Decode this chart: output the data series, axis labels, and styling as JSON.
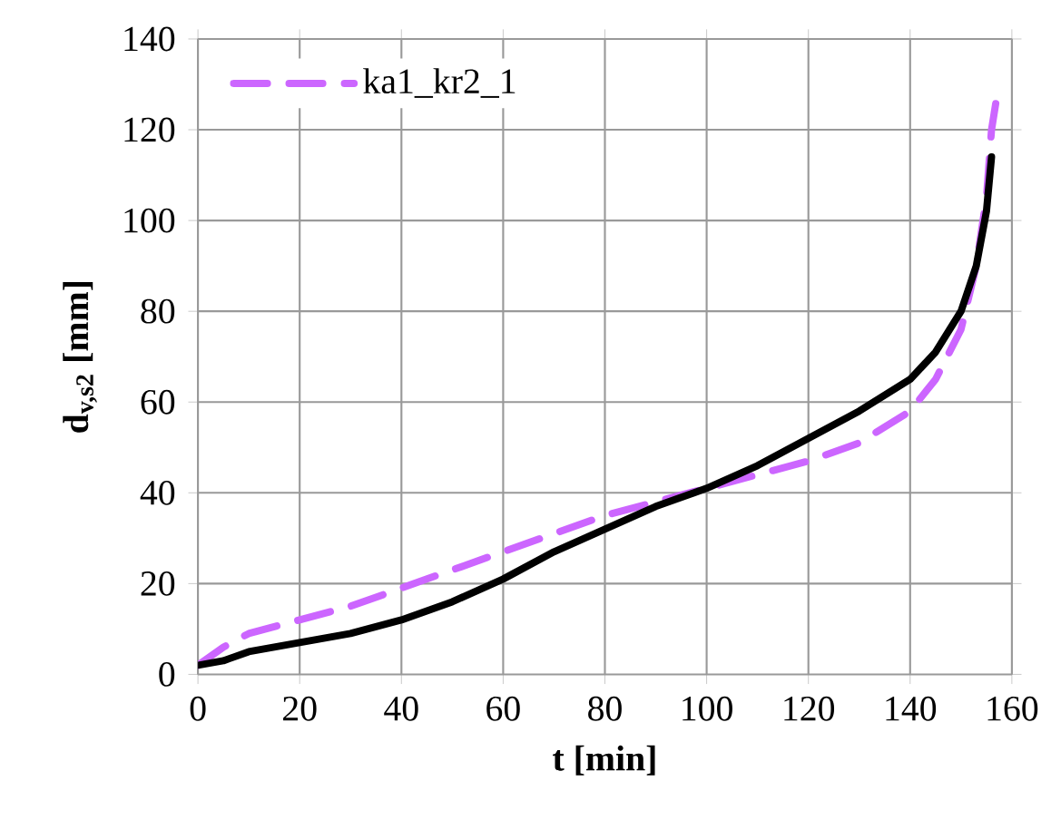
{
  "chart_data": {
    "type": "line",
    "xlabel": "t [min]",
    "ylabel": "d$_{v,s2}$ [mm]",
    "xlim": [
      0,
      160
    ],
    "ylim": [
      0,
      140
    ],
    "xticks": [
      0,
      20,
      40,
      60,
      80,
      100,
      120,
      140,
      160
    ],
    "yticks": [
      0,
      20,
      40,
      60,
      80,
      100,
      120,
      140
    ],
    "grid": true,
    "legend": "top left",
    "series": [
      {
        "name": "ka1_kr2_1",
        "color": "#cc66ff",
        "line_style": "dashed",
        "x": [
          0,
          5,
          10,
          20,
          30,
          40,
          50,
          60,
          70,
          80,
          90,
          100,
          110,
          120,
          130,
          140,
          145,
          150,
          153,
          155,
          156,
          157
        ],
        "values": [
          2,
          6,
          9,
          12,
          15,
          19,
          23,
          27,
          31,
          35,
          38,
          41,
          44,
          47,
          51,
          58,
          65,
          76,
          90,
          105,
          120,
          127
        ]
      },
      {
        "color": "#000000",
        "line_style": "solid",
        "x": [
          0,
          5,
          10,
          20,
          30,
          40,
          50,
          60,
          70,
          80,
          90,
          100,
          110,
          120,
          130,
          140,
          145,
          150,
          153,
          155,
          156
        ],
        "values": [
          2,
          3,
          5,
          7,
          9,
          12,
          16,
          21,
          27,
          32,
          37,
          41,
          46,
          52,
          58,
          65,
          71,
          80,
          90,
          102,
          114
        ]
      }
    ]
  }
}
